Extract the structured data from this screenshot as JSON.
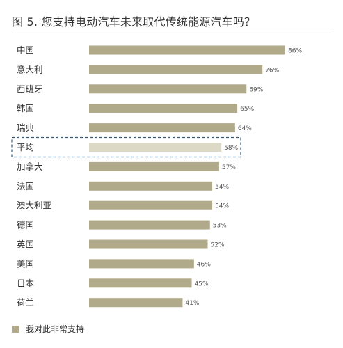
{
  "title": "图 5. 您支持电动汽车未来取代传统能源汽车吗？",
  "colors": {
    "bar": "#b0a98a",
    "highlight_bar": "#dcd9c6",
    "highlight_border": "#355a7a"
  },
  "legend": {
    "label": "我对此非常支持"
  },
  "chart_data": {
    "type": "bar",
    "orientation": "horizontal",
    "title": "图 5. 您支持电动汽车未来取代传统能源汽车吗？",
    "categories": [
      "中国",
      "意大利",
      "西班牙",
      "韩国",
      "瑞典",
      "平均",
      "加拿大",
      "法国",
      "澳大利亚",
      "德国",
      "英国",
      "美国",
      "日本",
      "荷兰"
    ],
    "series": [
      {
        "name": "我对此非常支持",
        "values": [
          86,
          76,
          69,
          65,
          64,
          58,
          57,
          54,
          54,
          53,
          52,
          46,
          45,
          41
        ],
        "labels": [
          "86%",
          "76%",
          "69%",
          "65%",
          "64%",
          "58%",
          "57%",
          "54%",
          "54%",
          "53%",
          "52%",
          "46%",
          "45%",
          "41%"
        ]
      }
    ],
    "highlight_category": "平均",
    "xlim": [
      0,
      100
    ],
    "grid": false,
    "legend_position": "bottom-left"
  }
}
